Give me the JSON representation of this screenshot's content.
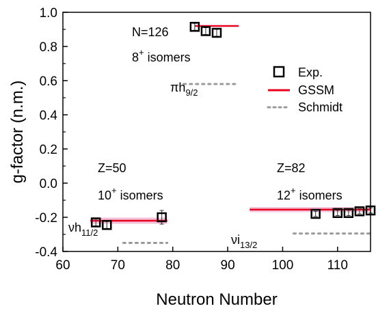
{
  "chart_data": {
    "type": "scatter",
    "xlabel": "Neutron Number",
    "ylabel": "g-factor (n.m.)",
    "xlim": [
      60,
      116
    ],
    "ylim": [
      -0.4,
      1.0
    ],
    "x_ticks": [
      60,
      70,
      80,
      90,
      100,
      110
    ],
    "y_ticks": [
      -0.4,
      -0.2,
      0.0,
      0.2,
      0.4,
      0.6,
      0.8,
      1.0
    ],
    "y_tick_labels": [
      "-0.4",
      "-0.2",
      "0.0",
      "0.2",
      "0.4",
      "0.6",
      "0.8",
      "1.0"
    ],
    "legend_position": "upper-right",
    "colors": {
      "exp": "#000000",
      "gssm": "#e8001c",
      "gssm_band": "#f4c2d8",
      "schmidt": "#999999",
      "errorbar": "#333333"
    },
    "series": [
      {
        "name": "Exp.",
        "marker": "open-square",
        "points": [
          {
            "x": 66,
            "y": -0.23,
            "err": 0.02
          },
          {
            "x": 68,
            "y": -0.245,
            "err": 0.02
          },
          {
            "x": 78,
            "y": -0.2,
            "err": 0.04
          },
          {
            "x": 84,
            "y": 0.915,
            "err": 0.02
          },
          {
            "x": 86,
            "y": 0.89,
            "err": 0.02
          },
          {
            "x": 88,
            "y": 0.88,
            "err": 0.02
          },
          {
            "x": 106,
            "y": -0.18,
            "err": 0.015
          },
          {
            "x": 110,
            "y": -0.175,
            "err": 0.015
          },
          {
            "x": 112,
            "y": -0.175,
            "err": 0.015
          },
          {
            "x": 114,
            "y": -0.165,
            "err": 0.015
          },
          {
            "x": 116,
            "y": -0.16,
            "err": 0.015
          }
        ]
      },
      {
        "name": "GSSM",
        "style": "solid",
        "segments": [
          {
            "x": [
              65,
              79
            ],
            "y": [
              -0.22,
              -0.22
            ],
            "band": 0.018
          },
          {
            "x": 84,
            "x_end": 92,
            "y": 0.92
          },
          {
            "x": [
              94,
              116
            ],
            "y": [
              -0.155,
              -0.155
            ],
            "band": 0.015
          }
        ]
      },
      {
        "name": "Schmidt",
        "style": "dotted",
        "segments": [
          {
            "x": [
              71,
              79
            ],
            "y": [
              -0.35,
              -0.35
            ]
          },
          {
            "x": [
              82,
              92
            ],
            "y": [
              0.58,
              0.58
            ]
          },
          {
            "x": [
              102,
              116
            ],
            "y": [
              -0.295,
              -0.295
            ]
          }
        ]
      }
    ],
    "annotations": [
      {
        "id": "n126",
        "text": "N=126",
        "sup": "",
        "sub": "",
        "prefix": ""
      },
      {
        "id": "iso8",
        "text": "8",
        "sup": "+",
        "tail": " isomers"
      },
      {
        "id": "pih",
        "prefix": "π",
        "text": "h",
        "sub": "9/2"
      },
      {
        "id": "z50",
        "text": "Z=50"
      },
      {
        "id": "iso10",
        "text": "10",
        "sup": "+",
        "tail": " isomers"
      },
      {
        "id": "nuh",
        "prefix": "ν",
        "text": "h",
        "sub": "11/2"
      },
      {
        "id": "z82",
        "text": "Z=82"
      },
      {
        "id": "iso12",
        "text": "12",
        "sup": "+",
        "tail": " isomers"
      },
      {
        "id": "nui",
        "prefix": "ν",
        "text": "i",
        "sub": "13/2"
      }
    ]
  }
}
